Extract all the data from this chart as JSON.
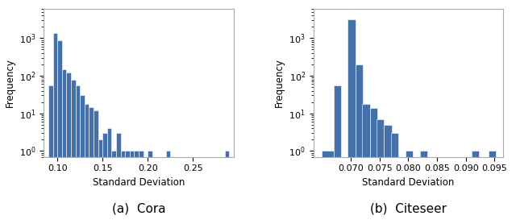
{
  "cora": {
    "title": "(a)  Cora",
    "xlabel": "Standard Deviation",
    "ylabel": "Frequency",
    "bar_color": "#4472a8",
    "bin_left": [
      0.09,
      0.095,
      0.1,
      0.105,
      0.11,
      0.115,
      0.12,
      0.125,
      0.13,
      0.135,
      0.14,
      0.145,
      0.15,
      0.155,
      0.16,
      0.165,
      0.17,
      0.175,
      0.18,
      0.185,
      0.19,
      0.195,
      0.2,
      0.205,
      0.21,
      0.215,
      0.22,
      0.225,
      0.23,
      0.285
    ],
    "counts": [
      55,
      1400,
      900,
      150,
      120,
      80,
      55,
      30,
      18,
      15,
      12,
      2,
      3,
      4,
      1,
      3,
      1,
      1,
      1,
      1,
      1,
      0,
      1,
      0,
      0,
      0,
      1,
      0,
      0,
      1
    ],
    "bin_width": 0.005,
    "xlim": [
      0.085,
      0.295
    ],
    "ylim_log": [
      0.7,
      6000
    ],
    "xticks": [
      0.1,
      0.15,
      0.2,
      0.25
    ]
  },
  "citeseer": {
    "title": "(b)  Citeseer",
    "xlabel": "Standard Deviation",
    "ylabel": "Frequency",
    "bar_color": "#4472a8",
    "bin_left": [
      0.065,
      0.067,
      0.0695,
      0.0708,
      0.072,
      0.0733,
      0.0745,
      0.0758,
      0.077,
      0.0795,
      0.082,
      0.091,
      0.094
    ],
    "counts": [
      1,
      55,
      3200,
      200,
      18,
      14,
      7,
      5,
      3,
      1,
      1,
      1,
      1
    ],
    "bin_width": 0.0013,
    "xlim": [
      0.0635,
      0.0965
    ],
    "ylim_log": [
      0.7,
      6000
    ],
    "xticks": [
      0.07,
      0.075,
      0.08,
      0.085,
      0.09,
      0.095
    ]
  },
  "background_color": "#ffffff"
}
